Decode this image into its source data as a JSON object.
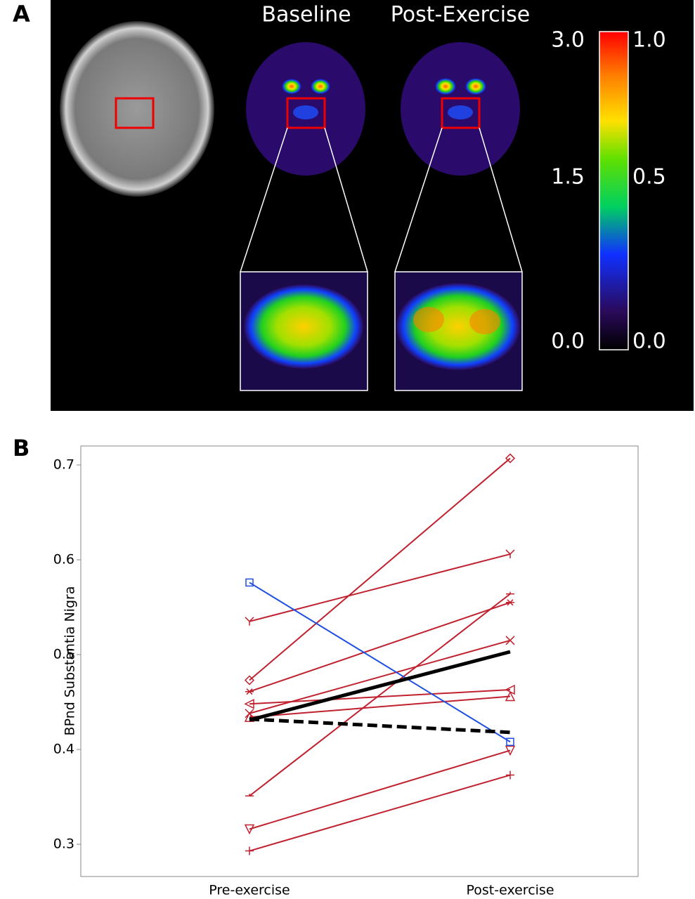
{
  "panel_a": {
    "label": "A",
    "columns": [
      "Baseline",
      "Post-Exercise"
    ],
    "colorbar": {
      "left_labels": [
        "3.0",
        "1.5",
        "0.0"
      ],
      "right_labels": [
        "1.0",
        "0.5",
        "0.0"
      ]
    }
  },
  "panel_b": {
    "label": "B"
  },
  "chart_data": {
    "type": "line",
    "categories": [
      "Pre-exercise",
      "Post-exercise"
    ],
    "y_label": "BPnd Substantia Nigra",
    "ylim": [
      0.266,
      0.72
    ],
    "yticks": [
      0.3,
      0.4,
      0.5,
      0.6,
      0.7
    ],
    "series": [
      {
        "color": "#c0212f",
        "marker": "plus",
        "values": [
          0.293,
          0.373
        ]
      },
      {
        "color": "#c0212f",
        "marker": "triangle-down",
        "values": [
          0.316,
          0.399
        ]
      },
      {
        "color": "#c0212f",
        "marker": "hline",
        "values": [
          0.351,
          0.564
        ]
      },
      {
        "color": "#c0212f",
        "marker": "triangle-up",
        "values": [
          0.434,
          0.456
        ]
      },
      {
        "color": "#c0212f",
        "marker": "triangle-left",
        "values": [
          0.448,
          0.463
        ]
      },
      {
        "color": "#c0212f",
        "marker": "x",
        "values": [
          0.438,
          0.515
        ]
      },
      {
        "color": "#c0212f",
        "marker": "asterisk",
        "values": [
          0.461,
          0.555
        ]
      },
      {
        "color": "#c0212f",
        "marker": "diamond",
        "values": [
          0.473,
          0.707
        ]
      },
      {
        "color": "#c0212f",
        "marker": "y",
        "values": [
          0.535,
          0.606
        ]
      },
      {
        "color": "#1f4fe0",
        "marker": "square",
        "values": [
          0.576,
          0.408
        ]
      },
      {
        "color": "#000000",
        "width": 5,
        "values": [
          0.431,
          0.503
        ]
      },
      {
        "color": "#000000",
        "width": 5,
        "dash": true,
        "values": [
          0.432,
          0.418
        ]
      }
    ]
  }
}
